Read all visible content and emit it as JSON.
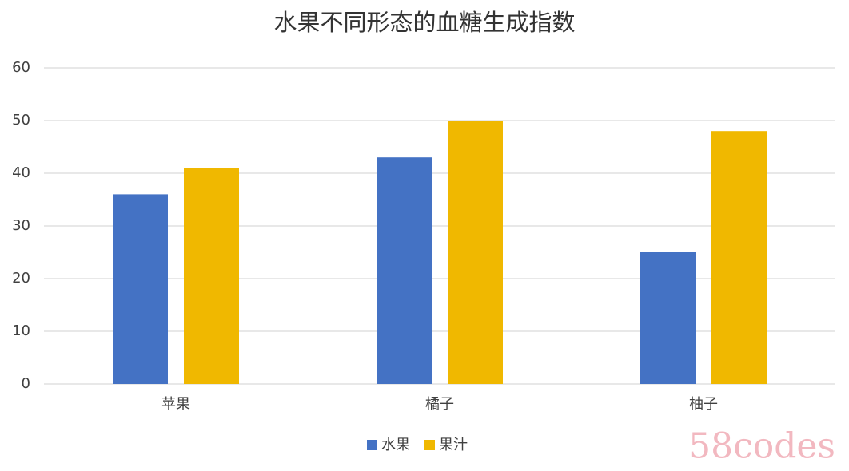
{
  "chart_data": {
    "type": "bar",
    "title": "水果不同形态的血糖生成指数",
    "categories": [
      "苹果",
      "橘子",
      "柚子"
    ],
    "series": [
      {
        "name": "水果",
        "color": "#4472c4",
        "values": [
          36,
          43,
          25
        ]
      },
      {
        "name": "果汁",
        "color": "#f0b800",
        "values": [
          41,
          50,
          48
        ]
      }
    ],
    "ylim": [
      0,
      60
    ],
    "yticks": [
      0,
      10,
      20,
      30,
      40,
      50,
      60
    ],
    "grid": true,
    "legend": "bottom"
  },
  "watermark": "58codes"
}
